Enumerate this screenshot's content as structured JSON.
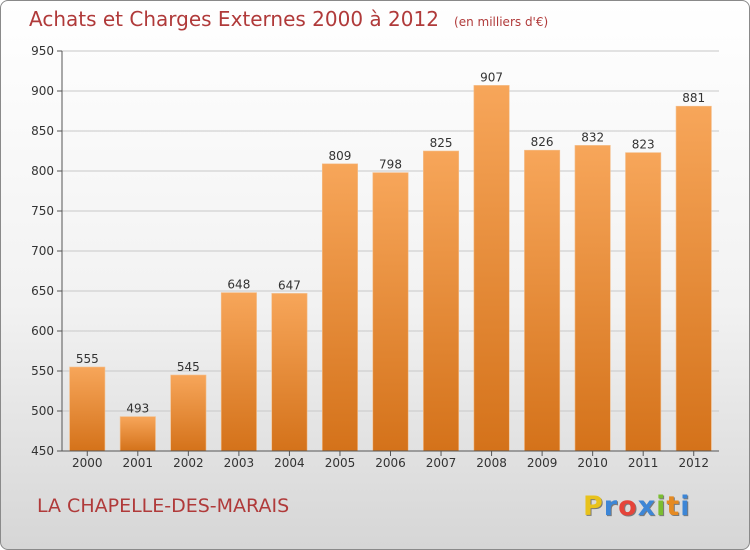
{
  "header": {
    "title": "Achats et Charges Externes 2000 à 2012",
    "unit": "(en milliers d'€)"
  },
  "footer": {
    "commune": "LA CHAPELLE-DES-MARAIS",
    "logo_letters": [
      "P",
      "r",
      "o",
      "x",
      "i",
      "t",
      "i"
    ],
    "logo_colors": [
      "#e8c21c",
      "#3d86d6",
      "#e5443a",
      "#3d86d6",
      "#7bbd31",
      "#e58a22",
      "#3d86d6"
    ]
  },
  "chart_data": {
    "type": "bar",
    "categories": [
      "2000",
      "2001",
      "2002",
      "2003",
      "2004",
      "2005",
      "2006",
      "2007",
      "2008",
      "2009",
      "2010",
      "2011",
      "2012"
    ],
    "values": [
      555,
      493,
      545,
      648,
      647,
      809,
      798,
      825,
      907,
      826,
      832,
      823,
      881
    ],
    "ylim": [
      450,
      950
    ],
    "yticks": [
      450,
      500,
      550,
      600,
      650,
      700,
      750,
      800,
      850,
      900,
      950
    ],
    "grid": true,
    "bar_color_top": "#f7a65a",
    "bar_color_bottom": "#d4721a"
  }
}
